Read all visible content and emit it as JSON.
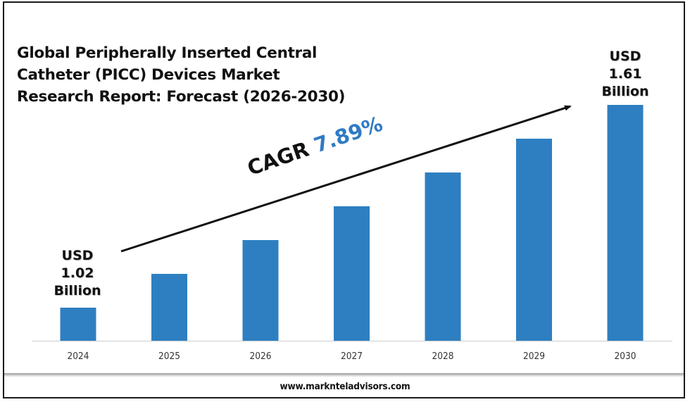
{
  "chart_data": {
    "type": "bar",
    "title": "Global Peripherally Inserted Central Catheter (PICC) Devices Market Research Report: Forecast (2026-2030)",
    "title_lines": [
      "Global Peripherally Inserted Central",
      "Catheter (PICC) Devices Market",
      "Research Report: Forecast (2026-2030)"
    ],
    "categories": [
      "2024",
      "2025",
      "2026",
      "2027",
      "2028",
      "2029",
      "2030"
    ],
    "values": [
      1.02,
      1.1,
      1.19,
      1.28,
      1.38,
      1.49,
      1.61
    ],
    "unit": "USD Billion",
    "xlabel": "",
    "ylabel": "",
    "grid": false,
    "legend": "none",
    "annotations": {
      "start_label": [
        "USD",
        "1.02",
        "Billion"
      ],
      "end_label": [
        "USD",
        "1.61",
        "Billion"
      ],
      "cagr_prefix": "CAGR",
      "cagr_value": "7.89%"
    },
    "colors": {
      "bar": "#2e7fc1",
      "cagr_value": "#2f7bc4",
      "axis": "#d9d9d9"
    }
  },
  "footer": {
    "website": "www.marknteladvisors.com"
  }
}
